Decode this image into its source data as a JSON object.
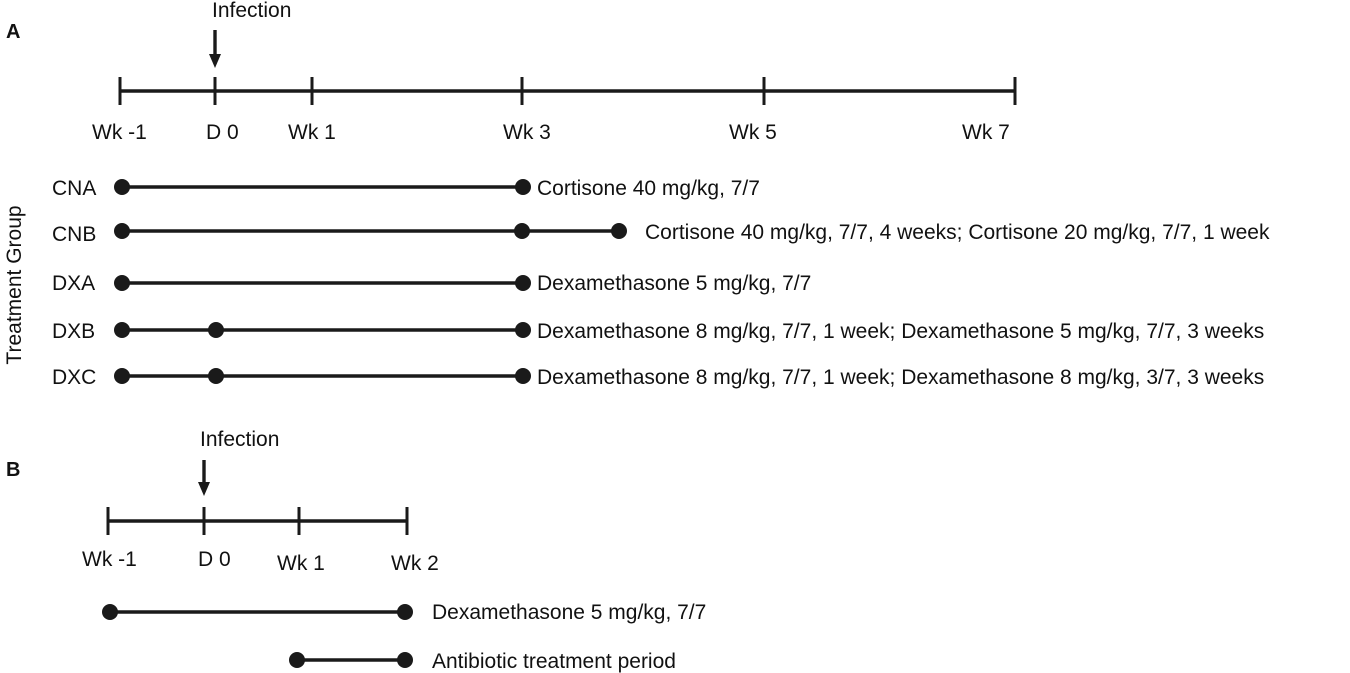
{
  "panel_a": {
    "letter": "A",
    "infection_label": "Infection",
    "timeline_labels": [
      "Wk -1",
      "D 0",
      "Wk 1",
      "Wk 3",
      "Wk 5",
      "Wk 7"
    ],
    "y_axis_label": "Treatment Group",
    "groups": [
      {
        "id": "CNA",
        "dots": [
          "Wk -1",
          "Wk 3"
        ],
        "description": "Cortisone 40 mg/kg, 7/7"
      },
      {
        "id": "CNB",
        "dots": [
          "Wk -1",
          "Wk 3",
          "Wk 4"
        ],
        "description": "Cortisone 40 mg/kg, 7/7, 4 weeks; Cortisone 20 mg/kg, 7/7, 1 week"
      },
      {
        "id": "DXA",
        "dots": [
          "Wk -1",
          "Wk 3"
        ],
        "description": "Dexamethasone 5 mg/kg, 7/7"
      },
      {
        "id": "DXB",
        "dots": [
          "Wk -1",
          "D 0",
          "Wk 3"
        ],
        "description": "Dexamethasone 8 mg/kg, 7/7, 1 week; Dexamethasone 5 mg/kg, 7/7, 3 weeks"
      },
      {
        "id": "DXC",
        "dots": [
          "Wk -1",
          "D 0",
          "Wk 3"
        ],
        "description": "Dexamethasone 8 mg/kg, 7/7, 1 week; Dexamethasone 8 mg/kg, 3/7, 3 weeks"
      }
    ]
  },
  "panel_b": {
    "letter": "B",
    "infection_label": "Infection",
    "timeline_labels": [
      "Wk -1",
      "D 0",
      "Wk 1",
      "Wk 2"
    ],
    "treatments": [
      {
        "name": "dexamethasone",
        "dots": [
          "Wk -1",
          "Wk 2"
        ],
        "description": "Dexamethasone 5 mg/kg, 7/7"
      },
      {
        "name": "antibiotic",
        "dots": [
          "Wk 1",
          "Wk 2"
        ],
        "description": "Antibiotic treatment period"
      }
    ]
  }
}
